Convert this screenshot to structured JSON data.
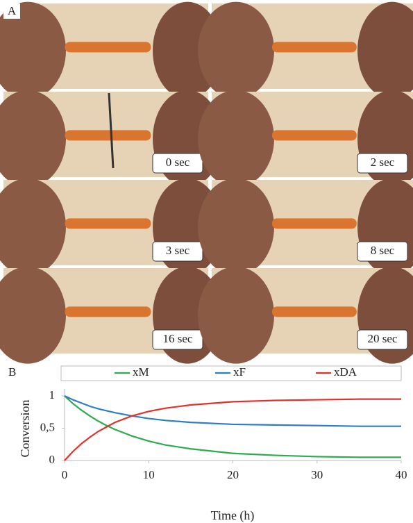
{
  "figure": {
    "panel_a": {
      "label": "A",
      "time_labels": [
        "0 sec",
        "2 sec",
        "3 sec",
        "8 sec",
        "16 sec",
        "20 sec"
      ]
    },
    "panel_b": {
      "label": "B"
    }
  },
  "chart_data": {
    "type": "line",
    "x_label": "Time (h)",
    "y_label": "Conversion",
    "x": [
      0,
      1,
      2,
      3,
      4,
      5,
      6,
      8,
      10,
      12,
      15,
      20,
      25,
      30,
      35,
      40
    ],
    "series": [
      {
        "name": "xM",
        "color": "#2eaa4f",
        "values": [
          1.0,
          0.88,
          0.78,
          0.69,
          0.61,
          0.54,
          0.48,
          0.38,
          0.3,
          0.24,
          0.18,
          0.11,
          0.08,
          0.06,
          0.05,
          0.05
        ]
      },
      {
        "name": "xF",
        "color": "#2f7dc4",
        "values": [
          1.0,
          0.94,
          0.89,
          0.84,
          0.8,
          0.77,
          0.74,
          0.69,
          0.65,
          0.62,
          0.59,
          0.56,
          0.55,
          0.54,
          0.53,
          0.53
        ]
      },
      {
        "name": "xDA",
        "color": "#e0312b",
        "values": [
          0,
          0.14,
          0.26,
          0.36,
          0.45,
          0.52,
          0.59,
          0.69,
          0.76,
          0.81,
          0.86,
          0.91,
          0.93,
          0.94,
          0.95,
          0.95
        ]
      }
    ],
    "xlim": [
      0,
      40
    ],
    "xticks": [
      0,
      10,
      20,
      30,
      40
    ],
    "ylim": [
      0,
      1
    ],
    "yticks": [
      0,
      {
        "value": 0.5,
        "label": "0,5"
      },
      1
    ],
    "grid": false,
    "legend": "top"
  }
}
